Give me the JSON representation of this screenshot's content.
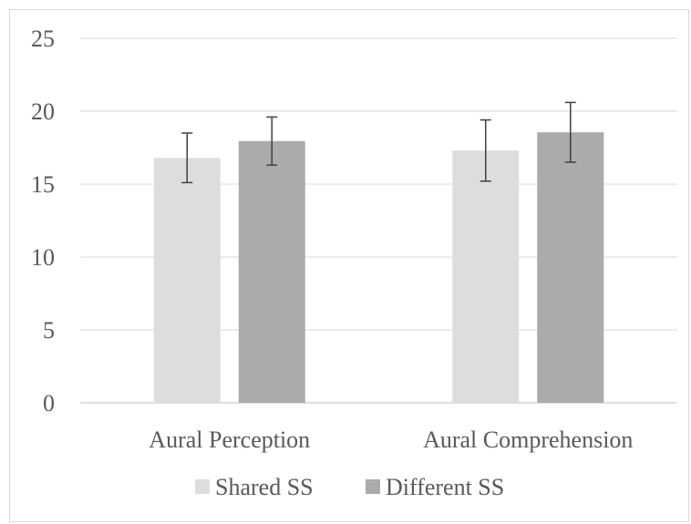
{
  "chart_data": {
    "type": "bar",
    "categories": [
      "Aural Perception",
      "Aural Comprehension"
    ],
    "series": [
      {
        "name": "Shared SS",
        "values": [
          16.8,
          17.3
        ],
        "error": [
          1.7,
          2.1
        ],
        "color": "#dddddd"
      },
      {
        "name": "Different SS",
        "values": [
          17.95,
          18.55
        ],
        "error": [
          1.65,
          2.05
        ],
        "color": "#ababab"
      }
    ],
    "ylim": [
      0,
      25
    ],
    "yticks": [
      0,
      5,
      10,
      15,
      20,
      25
    ],
    "grid": true,
    "legend": "bottom",
    "error_bar_color": "#404040"
  }
}
